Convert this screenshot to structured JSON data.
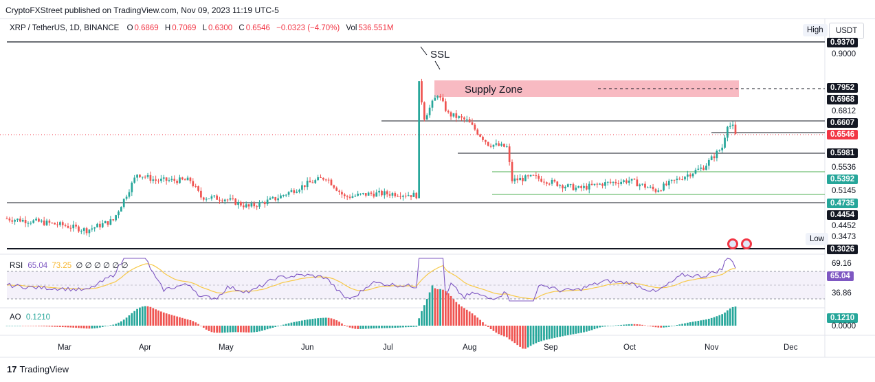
{
  "header": {
    "published": "CryptoFXStreet published on TradingView.com, Nov 09, 2023 11:19 UTC-5"
  },
  "legend": {
    "symbol": "XRP / TetherUS, 1D, BINANCE",
    "open_label": "O",
    "open": "0.6869",
    "high_label": "H",
    "high": "0.7069",
    "low_label": "L",
    "low": "0.6300",
    "close_label": "C",
    "close": "0.6546",
    "change": "−0.0323 (−4.70%)",
    "vol_label": "Vol",
    "vol": "536.551M"
  },
  "toolbar": {
    "high_label": "High",
    "currency_label": "USDT",
    "low_label": "Low"
  },
  "annotations": {
    "ssl": "SSL",
    "supply_zone": "Supply Zone"
  },
  "price_axis": {
    "plain_labels": [
      "0.9000",
      "0.6812",
      "0.5536",
      "0.5145",
      "0.4452",
      "0.3473"
    ],
    "black_badges": [
      "0.9370",
      "0.7952",
      "0.6968",
      "0.6607",
      "0.5981",
      "0.4454",
      "0.3026"
    ],
    "green_badges": [
      "0.5392",
      "0.4735"
    ],
    "current_price": "0.6546"
  },
  "rsi": {
    "label": "RSI",
    "value": "65.04",
    "ma_value": "73.25",
    "placeholders": [
      "∅",
      "∅",
      "∅",
      "∅",
      "∅",
      "∅"
    ],
    "axis_high": "69.16",
    "axis_low": "36.86",
    "badge": "65.04"
  },
  "ao": {
    "label": "AO",
    "value": "0.1210",
    "badge": "0.1210",
    "axis_zero": "0.0000"
  },
  "months": [
    "Mar",
    "Apr",
    "May",
    "Jun",
    "Jul",
    "Aug",
    "Sep",
    "Oct",
    "Nov",
    "Dec"
  ],
  "brand": {
    "logo_text": "TradingView"
  },
  "colors": {
    "up": "#26a69a",
    "down": "#ef5350",
    "rsi_line": "#7e57c2",
    "rsi_ma": "#f7c948",
    "supply_zone": "#f7b3bb",
    "green_level": "#4caf50",
    "badge_black": "#131722",
    "badge_green": "#26a69a",
    "current_price": "#f23645"
  },
  "chart_data": {
    "type": "candlestick",
    "title": "XRP / TetherUS, 1D, BINANCE",
    "x_range": [
      "2023-02-08",
      "2023-11-09"
    ],
    "ylim": [
      0.29,
      0.96
    ],
    "close_path": [
      [
        "2023-02-08",
        0.405
      ],
      [
        "2023-02-20",
        0.395
      ],
      [
        "2023-03-01",
        0.385
      ],
      [
        "2023-03-10",
        0.37
      ],
      [
        "2023-03-20",
        0.4
      ],
      [
        "2023-03-29",
        0.54
      ],
      [
        "2023-04-05",
        0.52
      ],
      [
        "2023-04-18",
        0.52
      ],
      [
        "2023-04-22",
        0.47
      ],
      [
        "2023-05-01",
        0.465
      ],
      [
        "2023-05-10",
        0.44
      ],
      [
        "2023-05-20",
        0.465
      ],
      [
        "2023-06-01",
        0.51
      ],
      [
        "2023-06-08",
        0.53
      ],
      [
        "2023-06-15",
        0.47
      ],
      [
        "2023-06-25",
        0.48
      ],
      [
        "2023-07-05",
        0.48
      ],
      [
        "2023-07-12",
        0.475
      ],
      [
        "2023-07-13",
        0.81
      ],
      [
        "2023-07-15",
        0.71
      ],
      [
        "2023-07-20",
        0.78
      ],
      [
        "2023-07-24",
        0.72
      ],
      [
        "2023-07-31",
        0.7
      ],
      [
        "2023-08-08",
        0.63
      ],
      [
        "2023-08-15",
        0.62
      ],
      [
        "2023-08-17",
        0.52
      ],
      [
        "2023-08-25",
        0.53
      ],
      [
        "2023-09-05",
        0.505
      ],
      [
        "2023-09-11",
        0.495
      ],
      [
        "2023-09-20",
        0.51
      ],
      [
        "2023-09-30",
        0.52
      ],
      [
        "2023-10-10",
        0.49
      ],
      [
        "2023-10-20",
        0.53
      ],
      [
        "2023-10-28",
        0.56
      ],
      [
        "2023-11-04",
        0.62
      ],
      [
        "2023-11-06",
        0.69
      ],
      [
        "2023-11-08",
        0.68
      ],
      [
        "2023-11-09",
        0.6546
      ]
    ],
    "levels": {
      "ssl_high": 0.937,
      "supply_zone_top": 0.7952,
      "supply_zone_bottom": 0.74,
      "resistance_1": 0.6607,
      "support_1": 0.5981,
      "range_high": 0.5392,
      "range_low": 0.4735,
      "support_2": 0.4454,
      "low_line": 0.3026,
      "current": 0.6546
    }
  }
}
